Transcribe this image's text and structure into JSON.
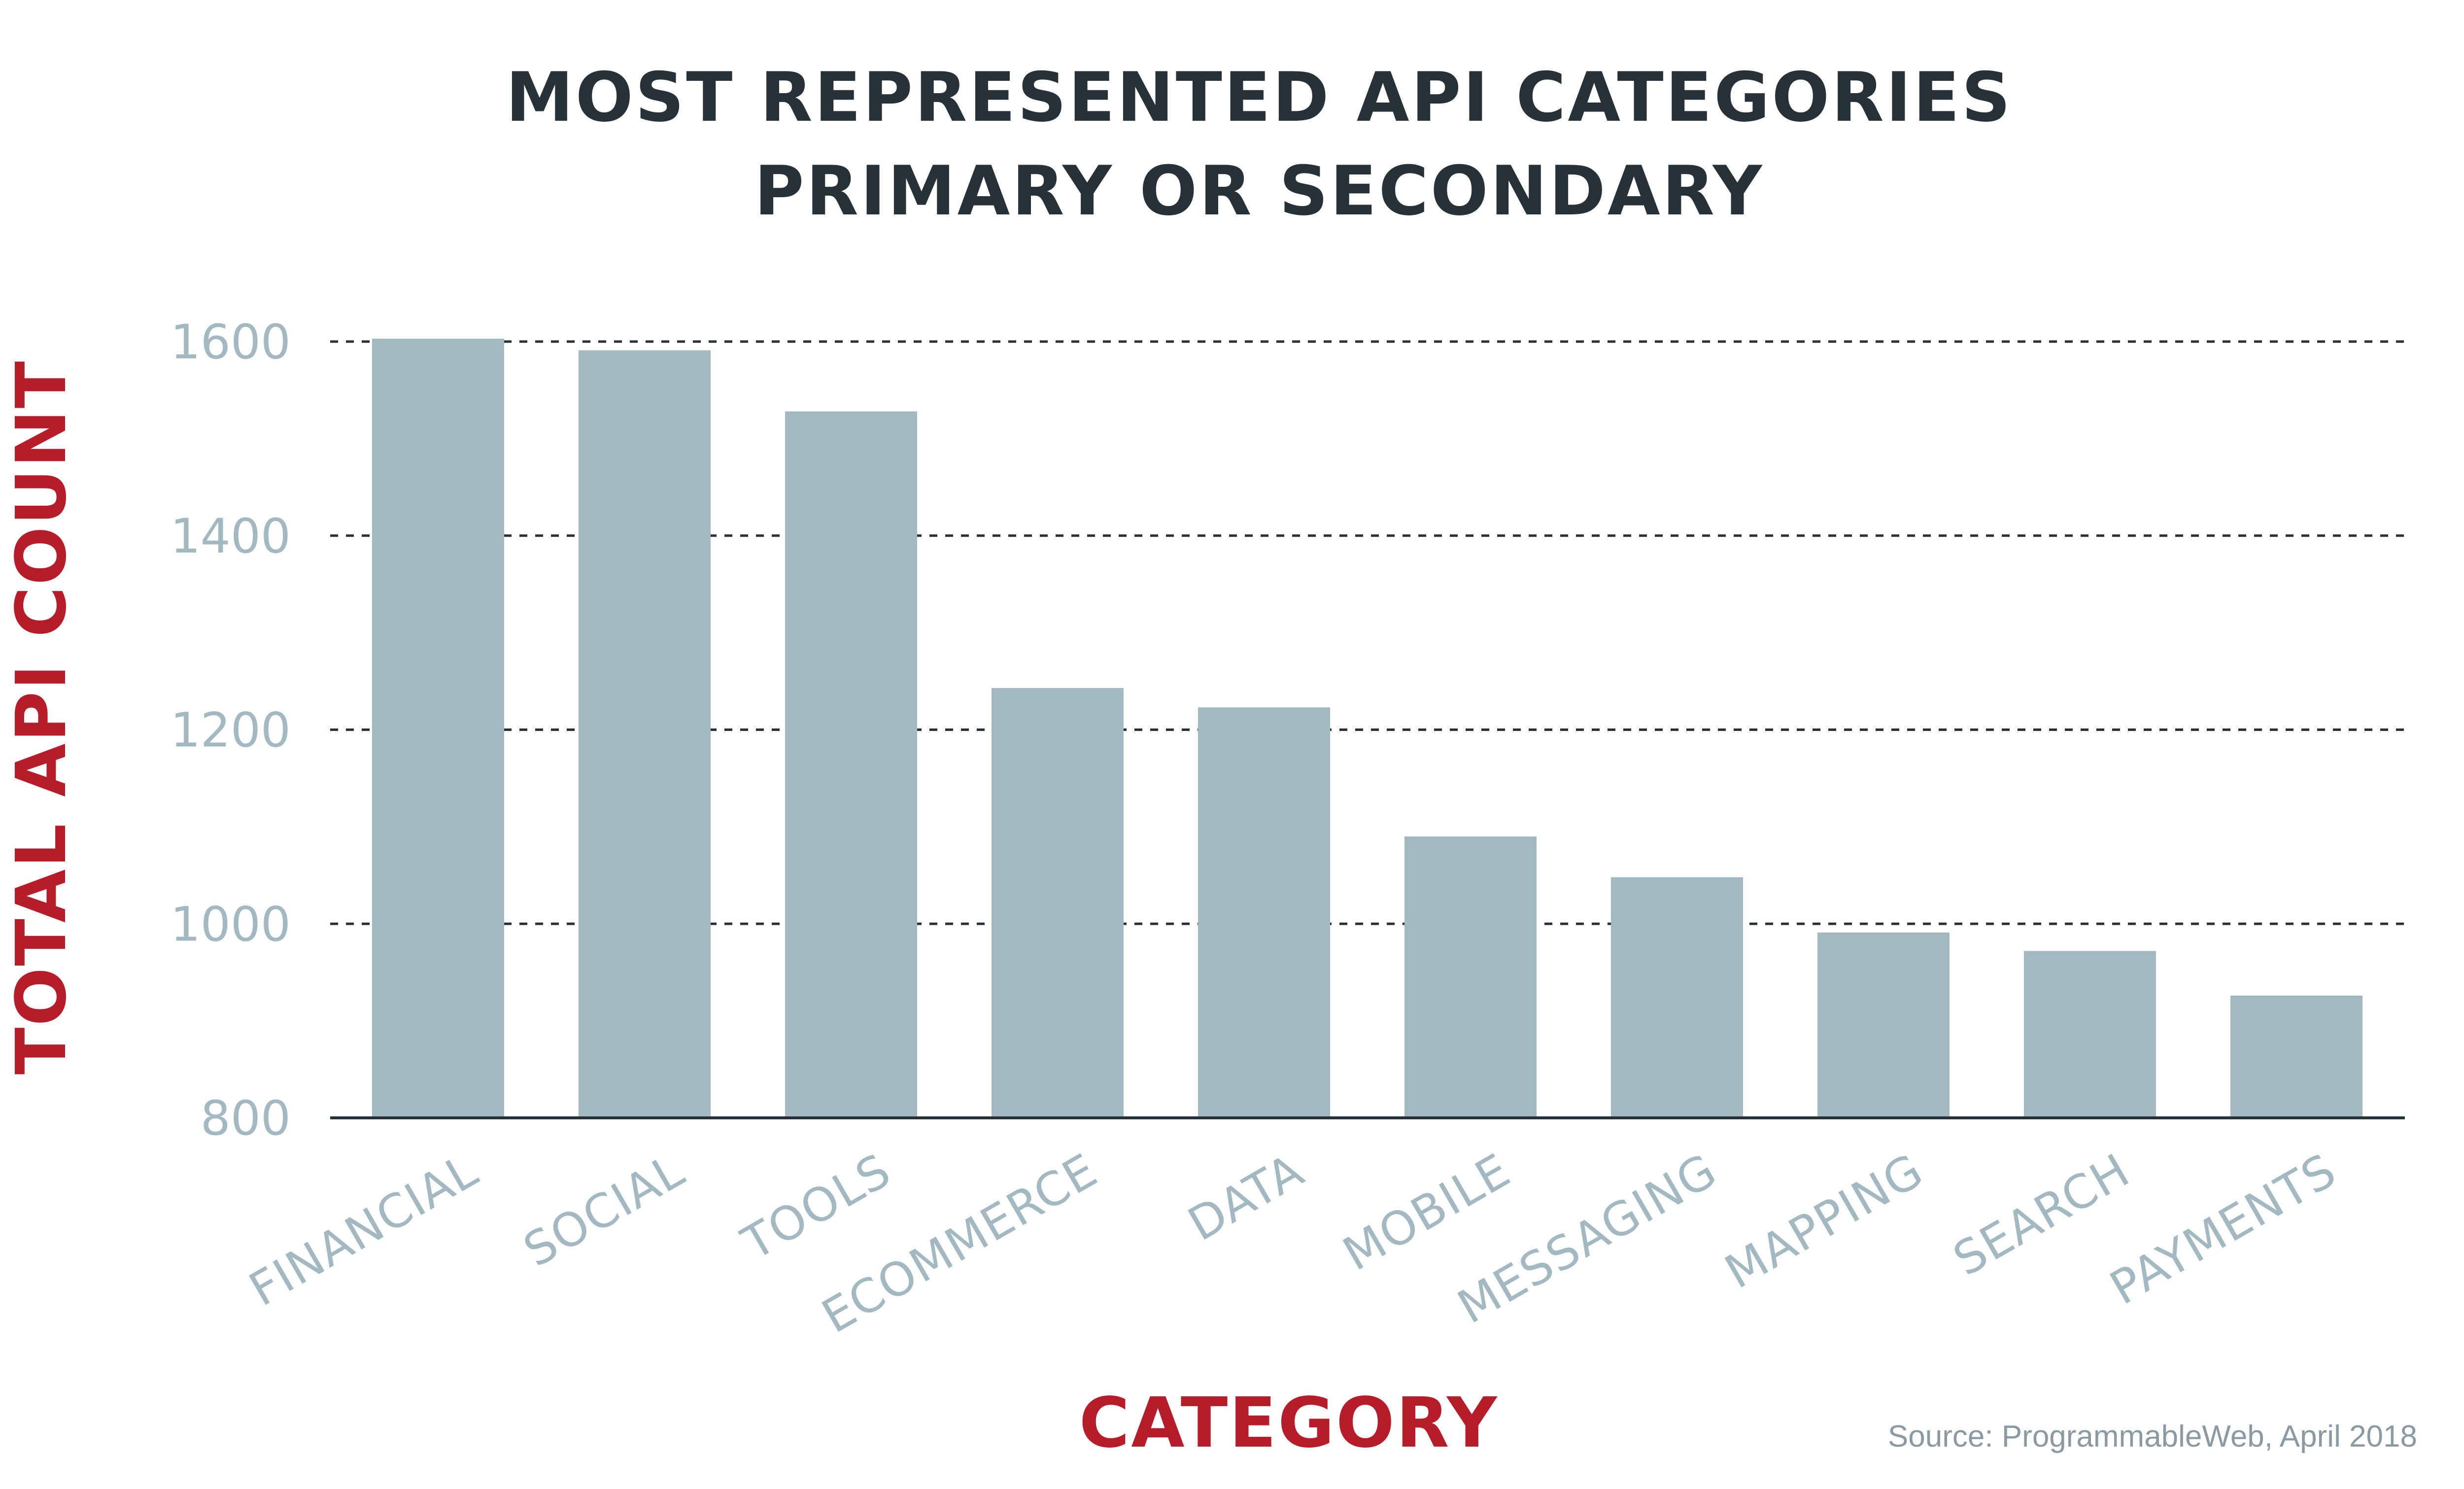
{
  "colors": {
    "title": "#263238",
    "axis_title": "#b71c2a",
    "bar": "#a3b9c2",
    "tick_label": "#a3b9c2",
    "category_label": "#a3b9c2",
    "grid": "#263238",
    "axis": "#263238",
    "source": "#8a9aa2"
  },
  "source_note": "Source: ProgrammableWeb, April 2018",
  "chart_data": {
    "type": "bar",
    "title": "MOST REPRESENTED API CATEGORIES",
    "subtitle": "PRIMARY OR SECONDARY",
    "xlabel": "CATEGORY",
    "ylabel": "TOTAL API COUNT",
    "categories": [
      "FINANCIAL",
      "SOCIAL",
      "TOOLS",
      "ECOMMERCE",
      "DATA",
      "MOBILE",
      "MESSAGING",
      "MAPPING",
      "SEARCH",
      "PAYMENTS"
    ],
    "values": [
      1603,
      1591,
      1528,
      1243,
      1223,
      1090,
      1048,
      991,
      972,
      926
    ],
    "ylim": [
      800,
      1600
    ],
    "yticks": [
      800,
      1000,
      1200,
      1400,
      1600
    ],
    "grid": "horizontal dashed",
    "legend": "none"
  }
}
